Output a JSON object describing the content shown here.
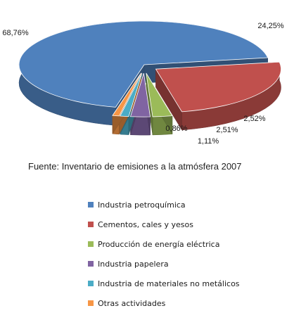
{
  "chart_data": {
    "type": "pie",
    "categories": [
      "Industria petroquímica",
      "Cementos, cales y yesos",
      "Producción de energía eléctrica",
      "Industria papelera",
      "Industria de materiales no metálicos",
      "Otras actividades"
    ],
    "values": [
      68.76,
      24.25,
      2.52,
      2.51,
      1.11,
      0.86
    ],
    "value_labels": [
      "68,76%",
      "24,25%",
      "2,52%",
      "2,51%",
      "1,11%",
      "0,86%"
    ],
    "colors": [
      "#4f81bd",
      "#c0504d",
      "#9bbb59",
      "#8064a2",
      "#4bacc6",
      "#f79646"
    ],
    "style": "3d-exploded",
    "legend_position": "bottom"
  },
  "source_text": "Fuente: Inventario de emisiones a la atmósfera 2007"
}
